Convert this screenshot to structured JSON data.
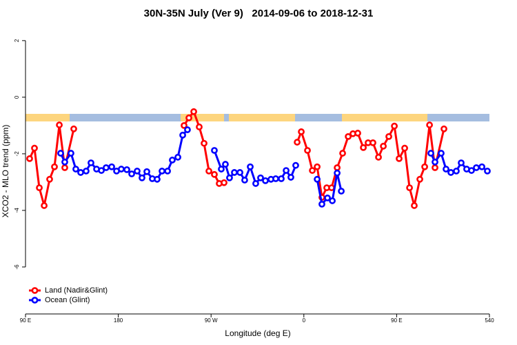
{
  "chart_data": {
    "type": "line",
    "title": "30N-35N July (Ver 9)   2014-09-06 to 2018-12-31",
    "xlabel": "Longitude (deg E)",
    "ylabel": "XCO2 - MLO trend (ppm)",
    "xlim": [
      90,
      540
    ],
    "xticks": [
      {
        "value": 90,
        "label": "90 E"
      },
      180,
      {
        "value": 270,
        "label": "90 W"
      },
      {
        "value": 360,
        "label": "0"
      },
      {
        "value": 450,
        "label": "90 E"
      },
      540
    ],
    "ylim": [
      -7.66,
      2.46
    ],
    "yticks": [
      -6,
      -4,
      -2,
      0,
      2
    ],
    "grid": false,
    "legend": "bottom-left",
    "series": [
      {
        "name": "Land (Nadir&Glint)",
        "color": "#ff0000",
        "x": [
          94.0,
          98.7,
          103.4,
          108.1,
          113.4,
          118.1,
          122.8,
          128.1,
          136.8,
          null,
          243.8,
          248.5,
          253.2,
          258.5,
          263.2,
          267.9,
          273.2,
          277.9,
          282.6,
          null,
          353.5,
          357.5,
          363.5,
          368.2,
          372.9,
          377.5,
          382.2,
          386.9,
          392.3,
          397.6,
          403.0,
          407.6,
          412.3,
          417.7,
          422.3,
          427.0,
          432.4,
          437.1,
          442.4,
          447.8,
          452.4,
          457.8,
          462.5,
          467.1,
          472.5,
          477.2,
          481.9,
          487.2,
          495.9
        ],
        "values": [
          -2.17,
          -1.8,
          -3.2,
          -3.83,
          -2.9,
          -2.46,
          -0.98,
          -2.49,
          -1.12,
          null,
          -1.0,
          -0.73,
          -0.51,
          -1.05,
          -1.63,
          -2.61,
          -2.73,
          -3.05,
          -3.02,
          null,
          -1.59,
          -1.22,
          -1.88,
          -2.59,
          -2.46,
          -3.54,
          -3.2,
          -3.2,
          -2.49,
          -1.98,
          -1.39,
          -1.29,
          -1.27,
          -1.78,
          -1.61,
          -1.61,
          -2.12,
          -1.73,
          -1.39,
          -1.02,
          -2.17,
          -1.8,
          -3.2,
          -3.83,
          -2.9,
          -2.46,
          -0.98,
          -2.49,
          -1.12
        ]
      },
      {
        "name": "Ocean (Glint)",
        "color": "#0000ff",
        "x": [
          124.1,
          128.1,
          134.1,
          138.8,
          143.5,
          148.8,
          153.5,
          158.9,
          163.6,
          168.2,
          173.6,
          178.3,
          182.9,
          188.3,
          193.0,
          198.3,
          203.0,
          207.7,
          213.0,
          217.7,
          222.4,
          227.8,
          232.4,
          237.8,
          242.5,
          247.1,
          null,
          273.2,
          279.9,
          283.9,
          287.9,
          292.6,
          298.0,
          302.6,
          308.0,
          313.3,
          318.0,
          322.7,
          328.1,
          332.7,
          338.1,
          342.8,
          347.4,
          352.1,
          null,
          372.9,
          377.5,
          382.9,
          387.6,
          392.3,
          396.3,
          null,
          483.2,
          487.2,
          493.2,
          497.9,
          502.6,
          507.9,
          512.6,
          517.9,
          522.6,
          527.3,
          532.7,
          538.0
        ],
        "values": [
          -1.98,
          -2.29,
          -1.98,
          -2.54,
          -2.66,
          -2.61,
          -2.32,
          -2.54,
          -2.59,
          -2.49,
          -2.46,
          -2.61,
          -2.54,
          -2.56,
          -2.71,
          -2.61,
          -2.85,
          -2.63,
          -2.88,
          -2.9,
          -2.61,
          -2.61,
          -2.22,
          -2.12,
          -1.34,
          -1.15,
          null,
          -1.88,
          -2.54,
          -2.37,
          -2.85,
          -2.66,
          -2.66,
          -2.93,
          -2.46,
          -3.05,
          -2.85,
          -2.95,
          -2.9,
          -2.88,
          -2.88,
          -2.59,
          -2.83,
          -2.41,
          null,
          -2.9,
          -3.78,
          -3.56,
          -3.66,
          -2.68,
          -3.32,
          null,
          -1.98,
          -2.29,
          -1.98,
          -2.54,
          -2.66,
          -2.61,
          -2.32,
          -2.54,
          -2.59,
          -2.49,
          -2.46,
          -2.61
        ]
      }
    ]
  }
}
